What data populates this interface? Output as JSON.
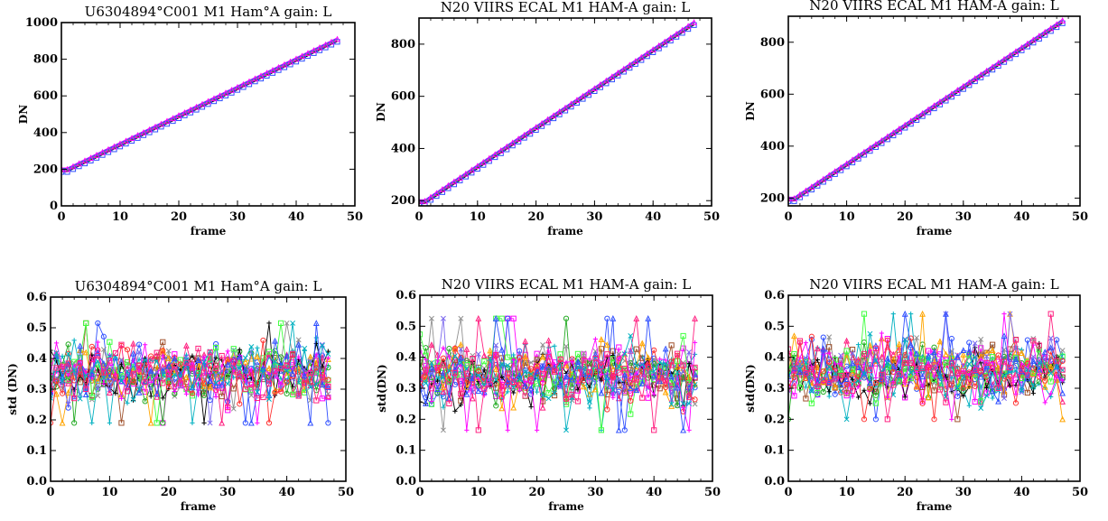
{
  "figure": {
    "colors": [
      "#ff00ff",
      "#3050ff",
      "#00b0c0",
      "#ff2080",
      "#909090",
      "#a0522d",
      "#22aa22",
      "#000000",
      "#ffa500",
      "#7b68ee",
      "#40ff40",
      "#ff3030"
    ]
  },
  "chart_data": [
    {
      "type": "line",
      "title": "U6304894°C001 M1 Ham°A gain: L",
      "xlabel": "frame",
      "ylabel": "DN",
      "xlim": [
        0,
        50
      ],
      "ylim": [
        0,
        1000
      ],
      "xticks": [
        "0",
        "10",
        "20",
        "30",
        "40",
        "50"
      ],
      "yticks": [
        "0",
        "200",
        "400",
        "600",
        "800",
        "1000"
      ],
      "yvals": [
        0,
        200,
        400,
        600,
        800,
        1000
      ],
      "series": [
        {
          "x_start": 0,
          "x_end": 47,
          "y_flat": 195,
          "flat_frames": 2,
          "y_end": 905
        }
      ]
    },
    {
      "type": "line",
      "title": "N20 VIIRS ECAL M1 HAM-A gain: L",
      "xlabel": "frame",
      "ylabel": "DN",
      "xlim": [
        0,
        50
      ],
      "ylim": [
        180,
        900
      ],
      "xticks": [
        "0",
        "10",
        "20",
        "30",
        "40",
        "50"
      ],
      "yticks": [
        "200",
        "400",
        "600",
        "800"
      ],
      "yvals": [
        200,
        400,
        600,
        800
      ],
      "series": [
        {
          "x_start": 0,
          "x_end": 47,
          "y_flat": 195,
          "flat_frames": 2,
          "y_end": 880
        }
      ]
    },
    {
      "type": "line",
      "title": "N20 VIIRS ECAL M1 HAM-A gain: L",
      "xlabel": "frame",
      "ylabel": "DN",
      "xlim": [
        0,
        50
      ],
      "ylim": [
        170,
        900
      ],
      "xticks": [
        "0",
        "10",
        "20",
        "30",
        "40",
        "50"
      ],
      "yticks": [
        "200",
        "400",
        "600",
        "800"
      ],
      "yvals": [
        200,
        400,
        600,
        800
      ],
      "series": [
        {
          "x_start": 0,
          "x_end": 47,
          "y_flat": 195,
          "flat_frames": 2,
          "y_end": 880
        }
      ]
    },
    {
      "type": "line",
      "title": "U6304894°C001 M1 Ham°A gain: L",
      "xlabel": "frame",
      "ylabel": "std (DN)",
      "xlim": [
        0,
        50
      ],
      "ylim": [
        0,
        0.6
      ],
      "xticks": [
        "0",
        "10",
        "20",
        "30",
        "40",
        "50"
      ],
      "yticks": [
        "0.0",
        "0.1",
        "0.2",
        "0.3",
        "0.4",
        "0.5",
        "0.6"
      ],
      "yvals": [
        0,
        0.1,
        0.2,
        0.3,
        0.4,
        0.5,
        0.6
      ],
      "noise": {
        "frames": 48,
        "series_count": 16,
        "mean": 0.35,
        "spread": 0.055,
        "min": 0.19,
        "max": 0.55,
        "seed": 11
      }
    },
    {
      "type": "line",
      "title": "N20 VIIRS ECAL M1 HAM-A gain: L",
      "xlabel": "frame",
      "ylabel": "std(DN)",
      "xlim": [
        0,
        50
      ],
      "ylim": [
        0,
        0.6
      ],
      "xticks": [
        "0",
        "10",
        "20",
        "30",
        "40",
        "50"
      ],
      "yticks": [
        "0.0",
        "0.1",
        "0.2",
        "0.3",
        "0.4",
        "0.5",
        "0.6"
      ],
      "yvals": [
        0,
        0.1,
        0.2,
        0.3,
        0.4,
        0.5,
        0.6
      ],
      "noise": {
        "frames": 48,
        "series_count": 16,
        "mean": 0.345,
        "spread": 0.06,
        "min": 0.16,
        "max": 0.6,
        "seed": 23
      }
    },
    {
      "type": "line",
      "title": "N20 VIIRS ECAL M1 HAM-A gain: L",
      "xlabel": "frame",
      "ylabel": "std(DN)",
      "xlim": [
        0,
        50
      ],
      "ylim": [
        0,
        0.6
      ],
      "xticks": [
        "0",
        "10",
        "20",
        "30",
        "40",
        "50"
      ],
      "yticks": [
        "0.0",
        "0.1",
        "0.2",
        "0.3",
        "0.4",
        "0.5",
        "0.6"
      ],
      "yvals": [
        0,
        0.1,
        0.2,
        0.3,
        0.4,
        0.5,
        0.6
      ],
      "noise": {
        "frames": 48,
        "series_count": 16,
        "mean": 0.36,
        "spread": 0.06,
        "min": 0.2,
        "max": 0.6,
        "seed": 37
      }
    }
  ]
}
